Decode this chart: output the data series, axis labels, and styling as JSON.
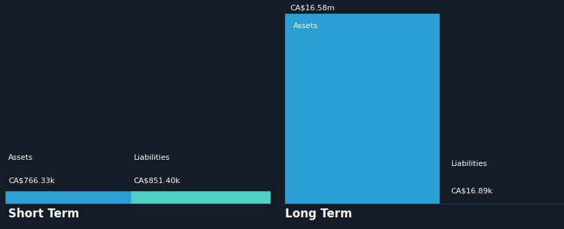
{
  "background_color": "#131c27",
  "text_color": "#ffffff",
  "short_term": {
    "assets_value": 766330,
    "liabilities_value": 851400,
    "assets_label": "CA$766.33k",
    "liabilities_label": "CA$851.40k",
    "assets_color": "#2b9fd4",
    "liabilities_color": "#4ecdc4",
    "title": "Short Term",
    "assets_text": "Assets",
    "liabilities_text": "Liabilities"
  },
  "long_term": {
    "assets_value": 16580000,
    "liabilities_value": 16890,
    "assets_label": "CA$16.58m",
    "liabilities_label": "CA$16.89k",
    "assets_color": "#2b9fd4",
    "title": "Long Term",
    "assets_text": "Assets",
    "liabilities_text": "Liabilities",
    "baseline_color": "#3a4a5a"
  },
  "label_fontsize": 8.0,
  "title_fontsize": 12,
  "value_fontsize": 8.0
}
